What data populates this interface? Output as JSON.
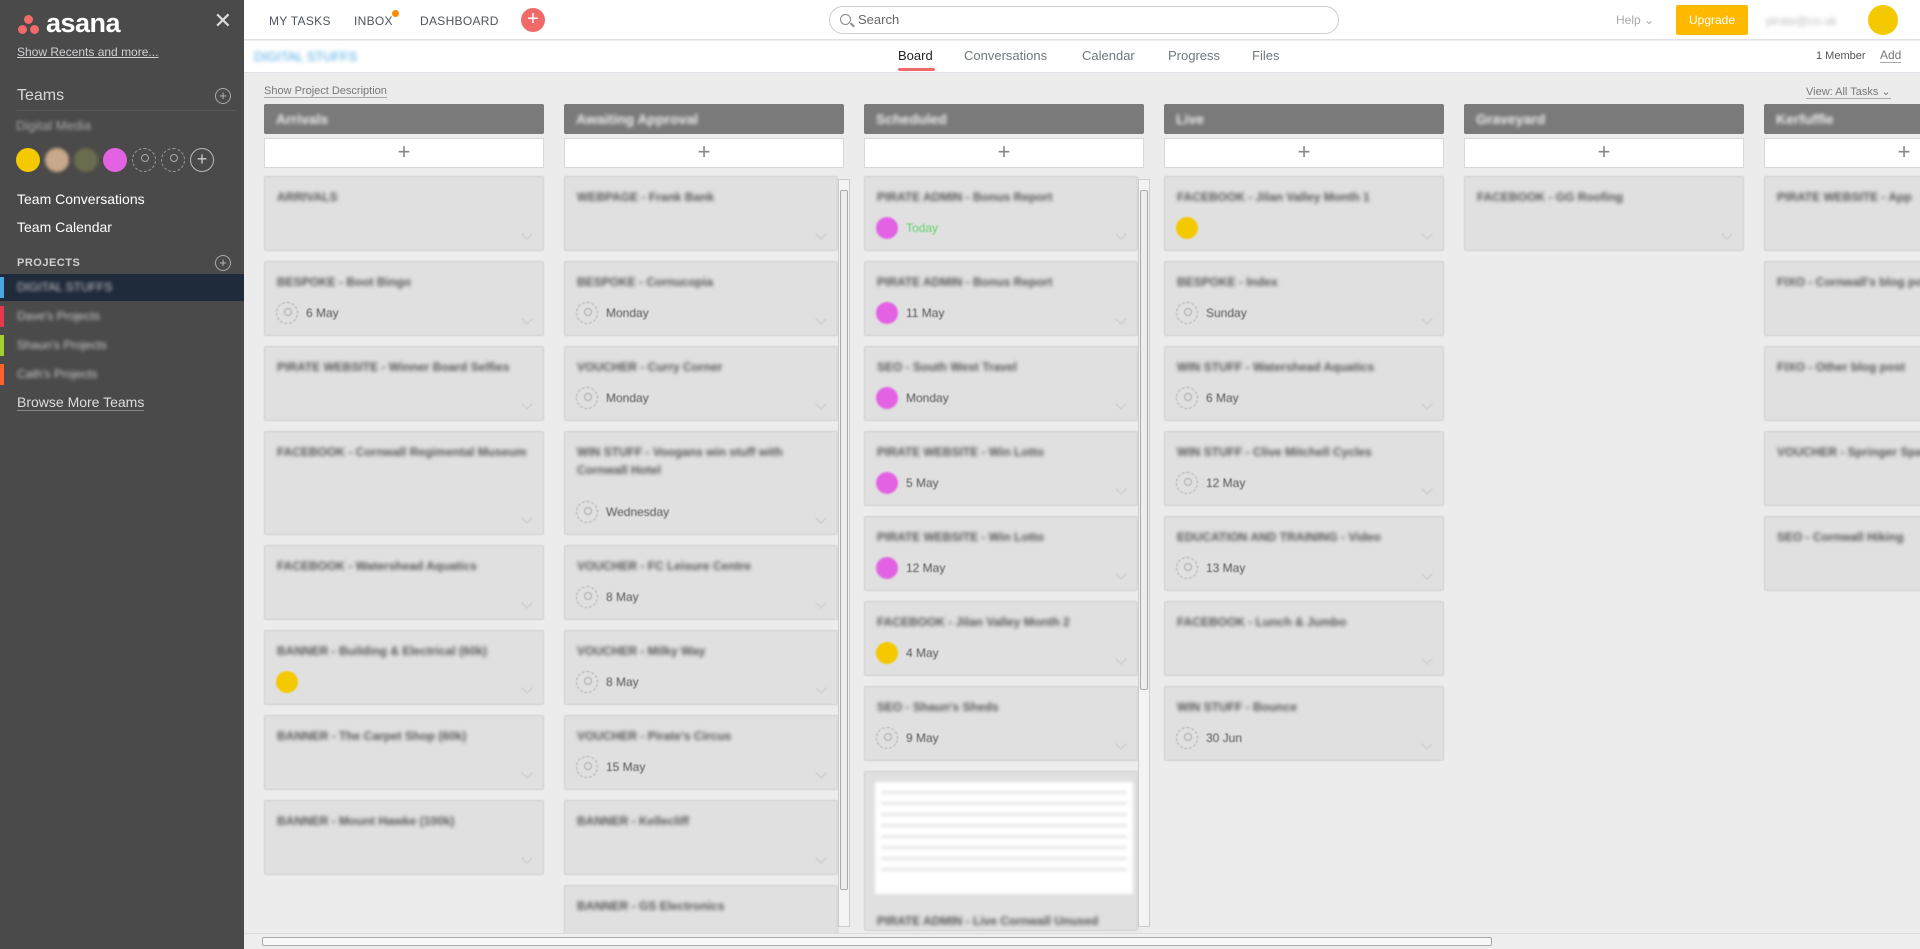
{
  "sidebar": {
    "logo_text": "asana",
    "close_glyph": "✕",
    "recents_link": "Show Recents and more...",
    "teams_label": "Teams",
    "team_name": "Digital Media",
    "links": [
      "Team Conversations",
      "Team Calendar"
    ],
    "projects_label": "PROJECTS",
    "projects": [
      {
        "name": "DIGITAL STUFFS",
        "color": "#4aa8e0",
        "active": true
      },
      {
        "name": "Dave's Projects",
        "color": "#e8384f"
      },
      {
        "name": "Shaun's Projects",
        "color": "#a4cf30"
      },
      {
        "name": "Cath's Projects",
        "color": "#fd612c"
      }
    ],
    "browse_more": "Browse More Teams",
    "avatar_colors": [
      "#f4c900",
      "#c8a88a",
      "#6b6b4f",
      "#e362e3"
    ]
  },
  "topbar": {
    "my_tasks": "MY TASKS",
    "inbox": "INBOX",
    "dashboard": "DASHBOARD",
    "search_placeholder": "Search",
    "help": "Help ⌄",
    "upgrade": "Upgrade",
    "user_blurred": "pirate@co.uk"
  },
  "project": {
    "title": "DIGITAL STUFFS",
    "tabs": [
      "Board",
      "Conversations",
      "Calendar",
      "Progress",
      "Files"
    ],
    "active_tab": "Board",
    "members": "1 Member",
    "add": "Add",
    "show_description": "Show Project Description",
    "view": "View: All Tasks ⌄"
  },
  "columns": [
    {
      "name": "Arrivals",
      "cards": [
        {
          "title": "ARRIVALS",
          "meta": "",
          "assignee": "none"
        },
        {
          "title": "BESPOKE - Boot Bingo",
          "meta": "6 May",
          "assignee": "empty"
        },
        {
          "title": "PIRATE WEBSITE - Winner Board Selfies",
          "meta": "",
          "assignee": "none"
        },
        {
          "title": "FACEBOOK - Cornwall Regimental Museum",
          "meta": "",
          "assignee": "none",
          "tall": true
        },
        {
          "title": "FACEBOOK - Watershead Aquatics",
          "meta": "",
          "assignee": "none"
        },
        {
          "title": "BANNER - Building & Electrical (60k)",
          "meta": "",
          "assignee": "yellow"
        },
        {
          "title": "BANNER - The Carpet Shop (60k)",
          "meta": "",
          "assignee": "none"
        },
        {
          "title": "BANNER - Mount Hawke (100k)",
          "meta": "",
          "assignee": "none"
        }
      ]
    },
    {
      "name": "Awaiting Approval",
      "cards": [
        {
          "title": "WEBPAGE - Frank Bank",
          "meta": "",
          "assignee": "none"
        },
        {
          "title": "BESPOKE - Cornucopia",
          "meta": "Monday",
          "assignee": "empty"
        },
        {
          "title": "VOUCHER - Curry Corner",
          "meta": "Monday",
          "assignee": "empty"
        },
        {
          "title": "WIN STUFF - Voogans win stuff with Cornwall Hotel",
          "meta": "Wednesday",
          "assignee": "empty",
          "tall": true
        },
        {
          "title": "VOUCHER - FC Leisure Centre",
          "meta": "8 May",
          "assignee": "empty"
        },
        {
          "title": "VOUCHER - Milky Way",
          "meta": "8 May",
          "assignee": "empty"
        },
        {
          "title": "VOUCHER - Pirate's Circus",
          "meta": "15 May",
          "assignee": "empty"
        },
        {
          "title": "BANNER - Kellecliff",
          "meta": "",
          "assignee": "none"
        },
        {
          "title": "BANNER - GS Electronics",
          "meta": "",
          "assignee": "none"
        }
      ]
    },
    {
      "name": "Scheduled",
      "cards": [
        {
          "title": "PIRATE ADMIN - Bonus Report",
          "meta": "Today",
          "assignee": "pink",
          "today": true
        },
        {
          "title": "PIRATE ADMIN - Bonus Report",
          "meta": "11 May",
          "assignee": "pink"
        },
        {
          "title": "SEO - South West Travel",
          "meta": "Monday",
          "assignee": "pink"
        },
        {
          "title": "PIRATE WEBSITE - Win Lotto",
          "meta": "5 May",
          "assignee": "pink"
        },
        {
          "title": "PIRATE WEBSITE - Win Lotto",
          "meta": "12 May",
          "assignee": "pink"
        },
        {
          "title": "FACEBOOK - Jilan Valley Month 2",
          "meta": "4 May",
          "assignee": "yellow"
        },
        {
          "title": "SEO - Shaun's Sheds",
          "meta": "9 May",
          "assignee": "empty"
        },
        {
          "title": "PIRATE ADMIN - Live Cornwall Unused",
          "meta": "",
          "assignee": "none",
          "image": true
        }
      ]
    },
    {
      "name": "Live",
      "cards": [
        {
          "title": "FACEBOOK - Jilan Valley Month 1",
          "meta": "",
          "assignee": "yellow"
        },
        {
          "title": "BESPOKE - Index",
          "meta": "Sunday",
          "assignee": "empty"
        },
        {
          "title": "WIN STUFF - Watershead Aquatics",
          "meta": "6 May",
          "assignee": "empty"
        },
        {
          "title": "WIN STUFF - Clive Mitchell Cycles",
          "meta": "12 May",
          "assignee": "empty"
        },
        {
          "title": "EDUCATION AND TRAINING - Video",
          "meta": "13 May",
          "assignee": "empty"
        },
        {
          "title": "FACEBOOK - Lunch & Jumbo",
          "meta": "",
          "assignee": "none"
        },
        {
          "title": "WIN STUFF - Bounce",
          "meta": "30 Jun",
          "assignee": "empty"
        }
      ]
    },
    {
      "name": "Graveyard",
      "cards": [
        {
          "title": "FACEBOOK - GG Roofing",
          "meta": "",
          "assignee": "none"
        }
      ]
    },
    {
      "name": "Kerfuffle",
      "cards": [
        {
          "title": "PIRATE WEBSITE - App",
          "meta": "",
          "assignee": "none"
        },
        {
          "title": "FIXO - Cornwall's blog post",
          "meta": "",
          "assignee": "none"
        },
        {
          "title": "FIXO - Other blog post",
          "meta": "",
          "assignee": "none"
        },
        {
          "title": "VOUCHER - Springer Spa",
          "meta": "",
          "assignee": "none"
        },
        {
          "title": "SEO - Cornwall Hiking",
          "meta": "",
          "assignee": "none"
        }
      ]
    }
  ],
  "colors": {
    "pink": "#e362e3",
    "yellow": "#f4c900",
    "today_green": "#62d26f",
    "accent": "#f06a6a"
  }
}
